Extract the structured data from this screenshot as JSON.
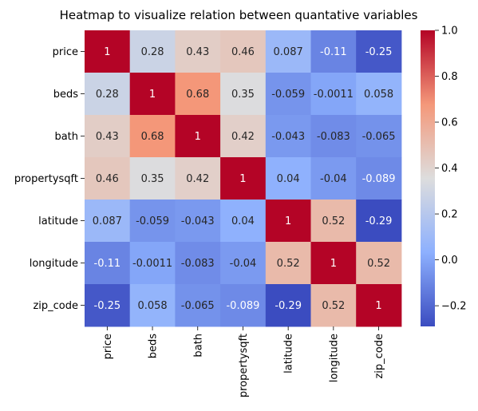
{
  "chart_data": {
    "type": "heatmap",
    "title": "Heatmap to visualize relation between quantative variables",
    "xlabel": "",
    "ylabel": "",
    "rows": [
      "price",
      "beds",
      "bath",
      "propertysqft",
      "latitude",
      "longitude",
      "zip_code"
    ],
    "columns": [
      "price",
      "beds",
      "bath",
      "propertysqft",
      "latitude",
      "longitude",
      "zip_code"
    ],
    "values": [
      [
        1,
        0.28,
        0.43,
        0.46,
        0.087,
        -0.11,
        -0.25
      ],
      [
        0.28,
        1,
        0.68,
        0.35,
        -0.059,
        -0.0011,
        0.058
      ],
      [
        0.43,
        0.68,
        1,
        0.42,
        -0.043,
        -0.083,
        -0.065
      ],
      [
        0.46,
        0.35,
        0.42,
        1,
        0.04,
        -0.04,
        -0.089
      ],
      [
        0.087,
        -0.059,
        -0.043,
        0.04,
        1,
        0.52,
        -0.29
      ],
      [
        -0.11,
        -0.0011,
        -0.083,
        -0.04,
        0.52,
        1,
        0.52
      ],
      [
        -0.25,
        0.058,
        -0.065,
        -0.089,
        -0.29,
        0.52,
        1
      ]
    ],
    "labels": [
      [
        "1",
        "0.28",
        "0.43",
        "0.46",
        "0.087",
        "-0.11",
        "-0.25"
      ],
      [
        "0.28",
        "1",
        "0.68",
        "0.35",
        "-0.059",
        "-0.0011",
        "0.058"
      ],
      [
        "0.43",
        "0.68",
        "1",
        "0.42",
        "-0.043",
        "-0.083",
        "-0.065"
      ],
      [
        "0.46",
        "0.35",
        "0.42",
        "1",
        "0.04",
        "-0.04",
        "-0.089"
      ],
      [
        "0.087",
        "-0.059",
        "-0.043",
        "0.04",
        "1",
        "0.52",
        "-0.29"
      ],
      [
        "-0.11",
        "-0.0011",
        "-0.083",
        "-0.04",
        "0.52",
        "1",
        "0.52"
      ],
      [
        "-0.25",
        "0.058",
        "-0.065",
        "-0.089",
        "-0.29",
        "0.52",
        "1"
      ]
    ],
    "colormap": "coolwarm",
    "colorbar": {
      "range": [
        -0.29,
        1.0
      ],
      "ticks": [
        -0.2,
        0.0,
        0.2,
        0.4,
        0.6,
        0.8,
        1.0
      ],
      "tick_labels": [
        "−0.2",
        "0.0",
        "0.2",
        "0.4",
        "0.6",
        "0.8",
        "1.0"
      ]
    }
  }
}
